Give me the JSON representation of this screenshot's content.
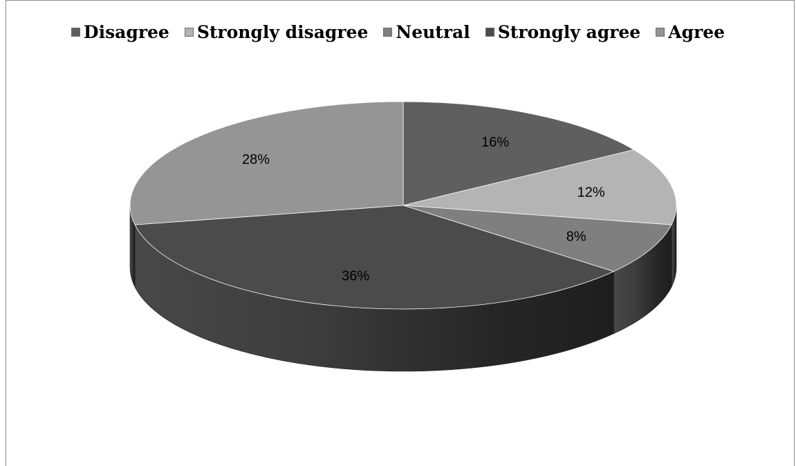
{
  "chart_data": {
    "type": "pie",
    "title": "",
    "legend_position": "top",
    "three_d": true,
    "categories": [
      "Disagree",
      "Strongly disagree",
      "Neutral",
      "Strongly agree",
      "Agree"
    ],
    "values": [
      16,
      12,
      8,
      36,
      28
    ],
    "labels": [
      "16%",
      "12%",
      "8%",
      "36%",
      "28%"
    ],
    "colors": [
      "#5f5f5f",
      "#b4b4b4",
      "#7f7f7f",
      "#4b4b4b",
      "#959595"
    ]
  }
}
